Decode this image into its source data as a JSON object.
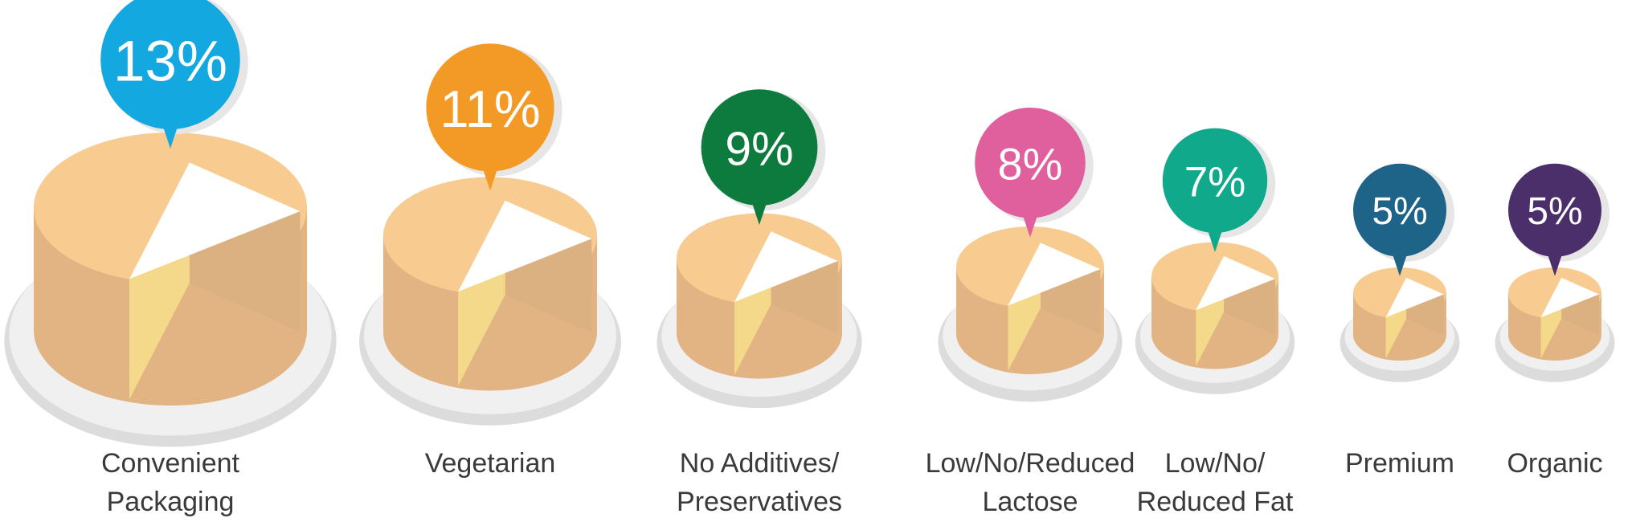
{
  "chart_data": {
    "type": "bar",
    "title": "",
    "xlabel": "",
    "ylabel": "",
    "categories": [
      [
        "Convenient",
        "Packaging"
      ],
      [
        "Vegetarian"
      ],
      [
        "No Additives/",
        "Preservatives"
      ],
      [
        "Low/No/Reduced",
        "Lactose"
      ],
      [
        "Low/No/",
        "Reduced Fat"
      ],
      [
        "Premium"
      ],
      [
        "Organic"
      ]
    ],
    "values": [
      13,
      11,
      9,
      8,
      7,
      5,
      5
    ],
    "value_labels": [
      "13%",
      "11%",
      "9%",
      "8%",
      "7%",
      "5%",
      "5%"
    ],
    "bubble_colors": [
      "#14a8e0",
      "#f39a26",
      "#0d7a3e",
      "#e0609d",
      "#10a98b",
      "#1e6388",
      "#4a2f6b"
    ],
    "colors": {
      "cheese_top": "#f8cb91",
      "cheese_side": "#e2b484",
      "cheese_cut_front": "#f5d98a",
      "cheese_cut_side": "#dbb182",
      "plate": "#f0f0f0",
      "plate_rim": "#dcdcdc"
    }
  }
}
